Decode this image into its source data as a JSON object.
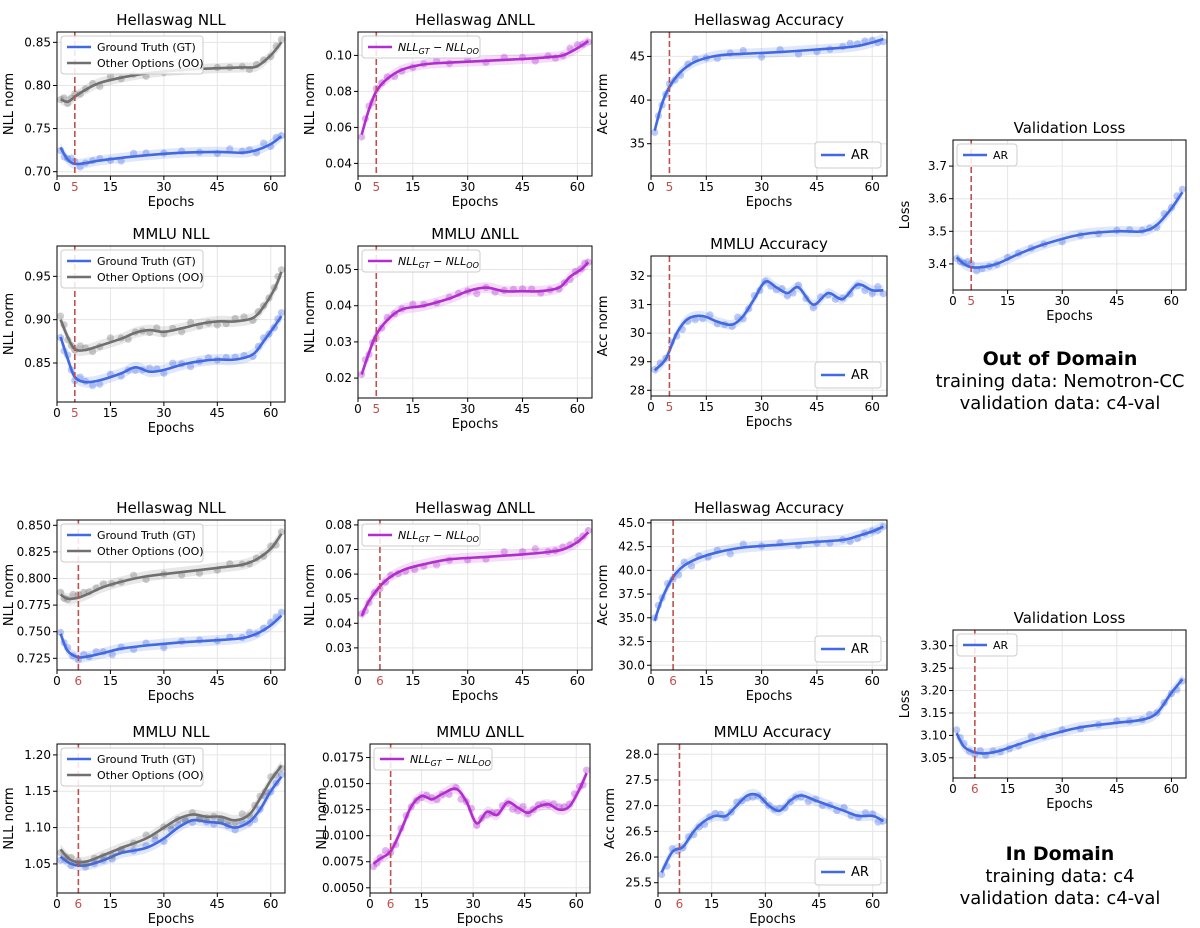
{
  "captions": [
    {
      "heading": "Out of Domain",
      "train": "training data: Nemotron-CC",
      "val": "validation data: c4-val"
    },
    {
      "heading": "In Domain",
      "train": "training data: c4",
      "val": "validation data: c4-val"
    }
  ],
  "colors": {
    "gt": "#4169e1",
    "oo": "#707070",
    "diff": "#b22ccf",
    "marker": "#c0504d",
    "grid": "#e6e6e6"
  },
  "chart_data": [
    {
      "id": "t1",
      "type": "line",
      "title": "Hellaswag NLL",
      "xlabel": "Epochs",
      "ylabel": "NLL norm",
      "xlim": [
        0,
        64
      ],
      "ylim": [
        0.695,
        0.862
      ],
      "xticks": [
        "0",
        "15",
        "30",
        "45",
        "60"
      ],
      "yticks": [
        "0.70",
        "0.75",
        "0.80",
        "0.85"
      ],
      "marker": "5",
      "legend": "top-left",
      "series": [
        {
          "name": "Ground Truth (GT)",
          "color": "gt",
          "x": [
            1,
            3,
            5,
            8,
            12,
            18,
            25,
            35,
            45,
            52,
            56,
            60,
            63
          ],
          "y": [
            0.728,
            0.714,
            0.709,
            0.71,
            0.713,
            0.716,
            0.719,
            0.722,
            0.723,
            0.722,
            0.725,
            0.732,
            0.741
          ]
        },
        {
          "name": "Other Options (OO)",
          "color": "oo",
          "x": [
            1,
            3,
            5,
            8,
            12,
            18,
            25,
            35,
            45,
            52,
            56,
            60,
            63
          ],
          "y": [
            0.784,
            0.781,
            0.787,
            0.795,
            0.803,
            0.809,
            0.814,
            0.818,
            0.82,
            0.821,
            0.822,
            0.835,
            0.85
          ]
        }
      ]
    },
    {
      "id": "t2",
      "type": "line",
      "title": "Hellaswag ΔNLL",
      "xlabel": "Epochs",
      "ylabel": "NLL norm",
      "xlim": [
        0,
        64
      ],
      "ylim": [
        0.033,
        0.113
      ],
      "xticks": [
        "0",
        "15",
        "30",
        "45",
        "60"
      ],
      "yticks": [
        "0.04",
        "0.06",
        "0.08",
        "0.10"
      ],
      "marker": "5",
      "legend": "top-left",
      "series": [
        {
          "name": "NLL_GT − NLL_OO",
          "color": "diff",
          "x": [
            1,
            3,
            5,
            8,
            12,
            18,
            25,
            35,
            45,
            52,
            56,
            60,
            63
          ],
          "y": [
            0.056,
            0.07,
            0.08,
            0.087,
            0.092,
            0.095,
            0.096,
            0.097,
            0.098,
            0.099,
            0.1,
            0.104,
            0.108
          ]
        }
      ]
    },
    {
      "id": "t3",
      "type": "line",
      "title": "Hellaswag Accuracy",
      "xlabel": "Epochs",
      "ylabel": "Acc norm",
      "xlim": [
        0,
        64
      ],
      "ylim": [
        31.3,
        47.8
      ],
      "xticks": [
        "0",
        "15",
        "30",
        "45",
        "60"
      ],
      "yticks": [
        "35",
        "40",
        "45"
      ],
      "marker": "5",
      "legend": "bottom-right",
      "series": [
        {
          "name": "AR",
          "color": "gt",
          "x": [
            1,
            3,
            5,
            8,
            12,
            18,
            25,
            35,
            45,
            52,
            56,
            60,
            63
          ],
          "y": [
            36.5,
            39.6,
            41.5,
            43.2,
            44.4,
            45.1,
            45.3,
            45.5,
            45.8,
            46.0,
            46.2,
            46.6,
            47.0
          ]
        }
      ]
    },
    {
      "id": "t4",
      "type": "line",
      "title": "Validation Loss",
      "xlabel": "Epochs",
      "ylabel": "Loss",
      "xlim": [
        0,
        64
      ],
      "ylim": [
        3.32,
        3.78
      ],
      "xticks": [
        "0",
        "15",
        "30",
        "45",
        "60"
      ],
      "yticks": [
        "3.4",
        "3.5",
        "3.6",
        "3.7"
      ],
      "marker": "5",
      "legend": "top-left",
      "series": [
        {
          "name": "AR",
          "color": "gt",
          "x": [
            1,
            3,
            5,
            8,
            12,
            18,
            25,
            35,
            45,
            52,
            56,
            60,
            63
          ],
          "y": [
            3.42,
            3.4,
            3.39,
            3.39,
            3.4,
            3.43,
            3.46,
            3.49,
            3.5,
            3.5,
            3.52,
            3.57,
            3.62
          ]
        }
      ]
    },
    {
      "id": "t5",
      "type": "line",
      "title": "MMLU NLL",
      "xlabel": "Epochs",
      "ylabel": "NLL norm",
      "xlim": [
        0,
        64
      ],
      "ylim": [
        0.805,
        0.985
      ],
      "xticks": [
        "0",
        "15",
        "30",
        "45",
        "60"
      ],
      "yticks": [
        "0.85",
        "0.90",
        "0.95"
      ],
      "marker": "5",
      "legend": "top-left",
      "series": [
        {
          "name": "Ground Truth (GT)",
          "color": "gt",
          "x": [
            1,
            3,
            5,
            8,
            12,
            18,
            22,
            26,
            30,
            35,
            40,
            45,
            50,
            55,
            58,
            61,
            63
          ],
          "y": [
            0.88,
            0.855,
            0.834,
            0.828,
            0.83,
            0.838,
            0.845,
            0.84,
            0.842,
            0.848,
            0.852,
            0.854,
            0.854,
            0.86,
            0.875,
            0.892,
            0.904
          ]
        },
        {
          "name": "Other Options (OO)",
          "color": "oo",
          "x": [
            1,
            3,
            5,
            8,
            12,
            18,
            22,
            26,
            30,
            35,
            40,
            45,
            50,
            55,
            58,
            61,
            63
          ],
          "y": [
            0.9,
            0.88,
            0.866,
            0.865,
            0.87,
            0.878,
            0.885,
            0.888,
            0.886,
            0.89,
            0.895,
            0.898,
            0.898,
            0.902,
            0.915,
            0.935,
            0.955
          ]
        }
      ]
    },
    {
      "id": "t6",
      "type": "line",
      "title": "MMLU ΔNLL",
      "xlabel": "Epochs",
      "ylabel": "NLL norm",
      "xlim": [
        0,
        64
      ],
      "ylim": [
        0.0145,
        0.0565
      ],
      "xticks": [
        "0",
        "15",
        "30",
        "45",
        "60"
      ],
      "yticks": [
        "0.02",
        "0.03",
        "0.04",
        "0.05"
      ],
      "marker": "5",
      "legend": "top-left",
      "series": [
        {
          "name": "NLL_GT − NLL_OO",
          "color": "diff",
          "x": [
            1,
            3,
            5,
            8,
            12,
            18,
            25,
            30,
            35,
            40,
            45,
            50,
            55,
            58,
            61,
            63
          ],
          "y": [
            0.021,
            0.027,
            0.032,
            0.036,
            0.039,
            0.04,
            0.042,
            0.044,
            0.045,
            0.044,
            0.044,
            0.044,
            0.045,
            0.048,
            0.05,
            0.052
          ]
        }
      ]
    },
    {
      "id": "t7",
      "type": "line",
      "title": "MMLU Accuracy",
      "xlabel": "Epochs",
      "ylabel": "Acc norm",
      "xlim": [
        0,
        64
      ],
      "ylim": [
        27.8,
        32.7
      ],
      "xticks": [
        "0",
        "15",
        "30",
        "45",
        "60"
      ],
      "yticks": [
        "28",
        "29",
        "30",
        "31",
        "32"
      ],
      "marker": "5",
      "legend": "bottom-right",
      "series": [
        {
          "name": "AR",
          "color": "gt",
          "x": [
            1,
            4,
            7,
            10,
            14,
            18,
            22,
            25,
            28,
            31,
            34,
            37,
            40,
            44,
            48,
            52,
            56,
            60,
            63
          ],
          "y": [
            28.7,
            29.1,
            30.0,
            30.5,
            30.6,
            30.4,
            30.3,
            30.6,
            31.2,
            31.8,
            31.6,
            31.4,
            31.6,
            31.0,
            31.4,
            31.2,
            31.7,
            31.5,
            31.5
          ]
        }
      ]
    },
    {
      "id": "b1",
      "type": "line",
      "title": "Hellaswag NLL",
      "xlabel": "Epochs",
      "ylabel": "NLL norm",
      "xlim": [
        0,
        64
      ],
      "ylim": [
        0.714,
        0.855
      ],
      "xticks": [
        "0",
        "15",
        "30",
        "45",
        "60"
      ],
      "yticks": [
        "0.725",
        "0.750",
        "0.775",
        "0.800",
        "0.825",
        "0.850"
      ],
      "marker": "6",
      "legend": "top-left",
      "series": [
        {
          "name": "Ground Truth (GT)",
          "color": "gt",
          "x": [
            1,
            3,
            6,
            9,
            13,
            18,
            25,
            35,
            45,
            52,
            56,
            60,
            63
          ],
          "y": [
            0.748,
            0.732,
            0.726,
            0.727,
            0.73,
            0.734,
            0.737,
            0.74,
            0.742,
            0.744,
            0.748,
            0.756,
            0.765
          ]
        },
        {
          "name": "Other Options (OO)",
          "color": "oo",
          "x": [
            1,
            3,
            6,
            9,
            13,
            18,
            25,
            35,
            45,
            52,
            56,
            60,
            63
          ],
          "y": [
            0.785,
            0.781,
            0.782,
            0.786,
            0.792,
            0.797,
            0.802,
            0.806,
            0.81,
            0.813,
            0.818,
            0.828,
            0.842
          ]
        }
      ]
    },
    {
      "id": "b2",
      "type": "line",
      "title": "Hellaswag ΔNLL",
      "xlabel": "Epochs",
      "ylabel": "NLL norm",
      "xlim": [
        0,
        64
      ],
      "ylim": [
        0.021,
        0.082
      ],
      "xticks": [
        "0",
        "15",
        "30",
        "45",
        "60"
      ],
      "yticks": [
        "0.03",
        "0.04",
        "0.05",
        "0.06",
        "0.07",
        "0.08"
      ],
      "marker": "6",
      "legend": "top-left",
      "series": [
        {
          "name": "NLL_GT − NLL_OO",
          "color": "diff",
          "x": [
            1,
            3,
            6,
            9,
            13,
            18,
            25,
            35,
            45,
            52,
            56,
            60,
            63
          ],
          "y": [
            0.043,
            0.049,
            0.055,
            0.059,
            0.062,
            0.064,
            0.066,
            0.067,
            0.068,
            0.069,
            0.07,
            0.073,
            0.077
          ]
        }
      ]
    },
    {
      "id": "b3",
      "type": "line",
      "title": "Hellaswag Accuracy",
      "xlabel": "Epochs",
      "ylabel": "Acc norm",
      "xlim": [
        0,
        64
      ],
      "ylim": [
        29.5,
        45.3
      ],
      "xticks": [
        "0",
        "15",
        "30",
        "45",
        "60"
      ],
      "yticks": [
        "30.0",
        "32.5",
        "35.0",
        "37.5",
        "40.0",
        "42.5",
        "45.0"
      ],
      "marker": "6",
      "legend": "bottom-right",
      "series": [
        {
          "name": "AR",
          "color": "gt",
          "x": [
            1,
            3,
            6,
            9,
            13,
            18,
            25,
            35,
            45,
            52,
            56,
            60,
            63
          ],
          "y": [
            34.7,
            37.0,
            39.3,
            40.5,
            41.3,
            41.9,
            42.4,
            42.7,
            43.0,
            43.2,
            43.6,
            44.1,
            44.6
          ]
        }
      ]
    },
    {
      "id": "b4",
      "type": "line",
      "title": "Validation Loss",
      "xlabel": "Epochs",
      "ylabel": "Loss",
      "xlim": [
        0,
        64
      ],
      "ylim": [
        3.005,
        3.335
      ],
      "xticks": [
        "0",
        "15",
        "30",
        "45",
        "60"
      ],
      "yticks": [
        "3.05",
        "3.10",
        "3.15",
        "3.20",
        "3.25",
        "3.30"
      ],
      "marker": "6",
      "legend": "top-left",
      "series": [
        {
          "name": "AR",
          "color": "gt",
          "x": [
            1,
            3,
            6,
            9,
            13,
            18,
            25,
            35,
            45,
            52,
            56,
            60,
            63
          ],
          "y": [
            3.105,
            3.075,
            3.062,
            3.06,
            3.066,
            3.08,
            3.098,
            3.118,
            3.128,
            3.135,
            3.15,
            3.195,
            3.225
          ]
        }
      ]
    },
    {
      "id": "b5",
      "type": "line",
      "title": "MMLU NLL",
      "xlabel": "Epochs",
      "ylabel": "NLL norm",
      "xlim": [
        0,
        64
      ],
      "ylim": [
        1.01,
        1.215
      ],
      "xticks": [
        "0",
        "15",
        "30",
        "45",
        "60"
      ],
      "yticks": [
        "1.05",
        "1.10",
        "1.15",
        "1.20"
      ],
      "marker": "6",
      "legend": "top-left",
      "series": [
        {
          "name": "Ground Truth (GT)",
          "color": "gt",
          "x": [
            1,
            4,
            8,
            13,
            18,
            25,
            30,
            34,
            38,
            42,
            46,
            50,
            54,
            57,
            60,
            63
          ],
          "y": [
            1.06,
            1.05,
            1.048,
            1.055,
            1.065,
            1.072,
            1.085,
            1.1,
            1.11,
            1.108,
            1.106,
            1.1,
            1.108,
            1.125,
            1.15,
            1.17
          ]
        },
        {
          "name": "Other Options (OO)",
          "color": "oo",
          "x": [
            1,
            4,
            8,
            13,
            18,
            25,
            30,
            34,
            38,
            42,
            46,
            50,
            54,
            57,
            60,
            63
          ],
          "y": [
            1.07,
            1.055,
            1.053,
            1.062,
            1.072,
            1.085,
            1.1,
            1.112,
            1.118,
            1.115,
            1.115,
            1.11,
            1.118,
            1.14,
            1.165,
            1.185
          ]
        }
      ]
    },
    {
      "id": "b6",
      "type": "line",
      "title": "MMLU ΔNLL",
      "xlabel": "Epochs",
      "ylabel": "NLL norm",
      "xlim": [
        0,
        64
      ],
      "ylim": [
        0.0045,
        0.0188
      ],
      "xticks": [
        "0",
        "15",
        "30",
        "45",
        "60"
      ],
      "yticks": [
        "0.0050",
        "0.0075",
        "0.0100",
        "0.0125",
        "0.0150",
        "0.0175"
      ],
      "marker": "6",
      "legend": "top-left",
      "series": [
        {
          "name": "NLL_GT − NLL_OO",
          "color": "diff",
          "x": [
            1,
            3,
            6,
            9,
            12,
            15,
            18,
            21,
            25,
            28,
            31,
            34,
            37,
            40,
            43,
            46,
            49,
            52,
            55,
            58,
            61,
            63
          ],
          "y": [
            0.0073,
            0.0078,
            0.0085,
            0.0105,
            0.0128,
            0.0138,
            0.0135,
            0.014,
            0.0145,
            0.0133,
            0.0112,
            0.0123,
            0.012,
            0.0132,
            0.0127,
            0.0122,
            0.0128,
            0.013,
            0.0125,
            0.0128,
            0.0145,
            0.016
          ]
        }
      ]
    },
    {
      "id": "b7",
      "type": "line",
      "title": "MMLU Accuracy",
      "xlabel": "Epochs",
      "ylabel": "Acc norm",
      "xlim": [
        0,
        64
      ],
      "ylim": [
        25.3,
        28.2
      ],
      "xticks": [
        "0",
        "15",
        "30",
        "45",
        "60"
      ],
      "yticks": [
        "25.5",
        "26.0",
        "26.5",
        "27.0",
        "27.5",
        "28.0"
      ],
      "marker": "6",
      "legend": "bottom-right",
      "series": [
        {
          "name": "AR",
          "color": "gt",
          "x": [
            1,
            4,
            7,
            10,
            13,
            16,
            19,
            22,
            25,
            28,
            31,
            34,
            37,
            40,
            44,
            48,
            52,
            56,
            60,
            63
          ],
          "y": [
            25.7,
            26.1,
            26.2,
            26.5,
            26.7,
            26.8,
            26.8,
            27.0,
            27.2,
            27.2,
            27.0,
            26.9,
            27.1,
            27.2,
            27.1,
            27.0,
            26.9,
            26.8,
            26.8,
            26.7
          ]
        }
      ]
    }
  ]
}
